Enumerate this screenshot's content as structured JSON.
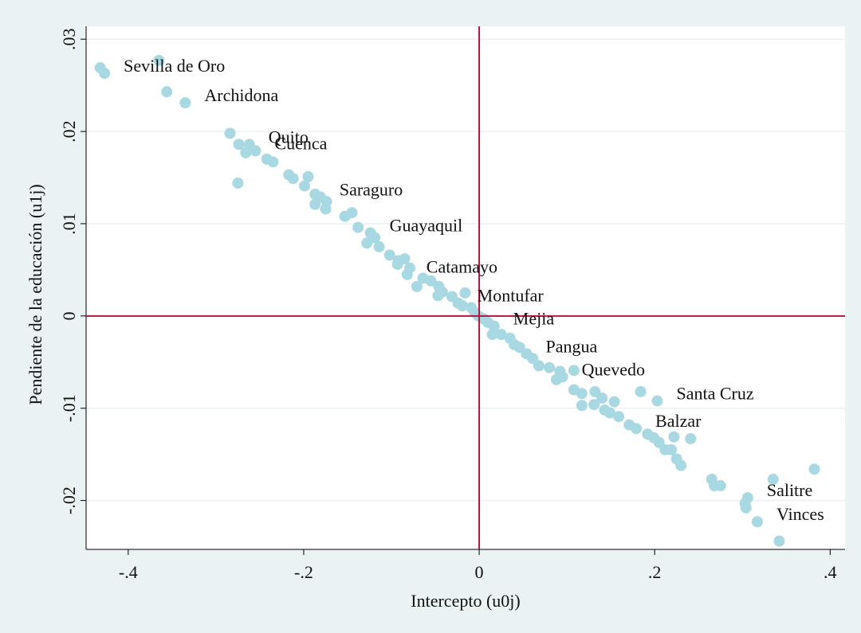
{
  "chart_data": {
    "type": "scatter",
    "x_label": "Intercepto (u0j)",
    "y_label": "Pendiente de la educación (u1j)",
    "color": "#a8d8e2",
    "ref_color": "#b0173f",
    "grid": true,
    "xline": 0,
    "yline": 0,
    "xlim": [
      -0.448,
      0.417
    ],
    "ylim": [
      -0.0253,
      0.0314
    ],
    "xticks": [
      {
        "value": -0.4,
        "label": "-.4"
      },
      {
        "value": -0.2,
        "label": "-.2"
      },
      0,
      {
        "value": 0.2,
        "label": ".2"
      },
      {
        "value": 0.4,
        "label": ".4"
      }
    ],
    "yticks": [
      {
        "value": -0.02,
        "label": "-.02"
      },
      {
        "value": -0.01,
        "label": "-.01"
      },
      0,
      {
        "value": 0.01,
        "label": ".01"
      },
      {
        "value": 0.02,
        "label": ".02"
      },
      {
        "value": 0.03,
        "label": ".03"
      }
    ],
    "x": [
      -0.432,
      -0.427,
      -0.365,
      -0.356,
      -0.335,
      -0.284,
      -0.274,
      -0.262,
      -0.266,
      -0.255,
      -0.242,
      -0.235,
      -0.275,
      -0.217,
      -0.212,
      -0.195,
      -0.199,
      -0.187,
      -0.181,
      -0.174,
      -0.187,
      -0.175,
      -0.153,
      -0.145,
      -0.138,
      -0.124,
      -0.119,
      -0.128,
      -0.114,
      -0.102,
      -0.092,
      -0.085,
      -0.093,
      -0.079,
      -0.082,
      -0.071,
      -0.064,
      -0.055,
      -0.046,
      -0.042,
      -0.047,
      -0.031,
      -0.016,
      -0.024,
      -0.019,
      -0.009,
      -0.005,
      -0.001,
      0.005,
      0.01,
      0.017,
      0.015,
      0.025,
      0.035,
      0.04,
      0.046,
      0.054,
      0.061,
      0.068,
      0.08,
      0.092,
      0.095,
      0.088,
      0.108,
      0.108,
      0.117,
      0.132,
      0.117,
      0.131,
      0.14,
      0.143,
      0.149,
      0.154,
      0.159,
      0.171,
      0.179,
      0.192,
      0.199,
      0.205,
      0.212,
      0.219,
      0.222,
      0.225,
      0.23,
      0.241,
      0.184,
      0.203,
      0.265,
      0.268,
      0.275,
      0.306,
      0.303,
      0.304,
      0.317,
      0.335,
      0.382,
      0.342
    ],
    "y": [
      0.0269,
      0.0263,
      0.0277,
      0.0243,
      0.0231,
      0.0198,
      0.0186,
      0.0186,
      0.0177,
      0.0179,
      0.017,
      0.0167,
      0.0144,
      0.0153,
      0.0149,
      0.0151,
      0.0141,
      0.0132,
      0.0129,
      0.0124,
      0.0121,
      0.0116,
      0.0108,
      0.0112,
      0.0096,
      0.009,
      0.0085,
      0.0079,
      0.0075,
      0.0066,
      0.006,
      0.0062,
      0.0056,
      0.0052,
      0.0045,
      0.0032,
      0.0041,
      0.0038,
      0.0032,
      0.0026,
      0.0022,
      0.0021,
      0.0025,
      0.0014,
      0.0011,
      0.0009,
      0.0004,
      0.0,
      -0.0003,
      -0.0007,
      -0.0011,
      -0.002,
      -0.002,
      -0.0024,
      -0.0031,
      -0.0034,
      -0.0041,
      -0.0046,
      -0.0054,
      -0.0056,
      -0.006,
      -0.0066,
      -0.0069,
      -0.0059,
      -0.008,
      -0.0084,
      -0.0082,
      -0.0097,
      -0.0096,
      -0.0089,
      -0.0102,
      -0.0105,
      -0.0093,
      -0.0109,
      -0.0118,
      -0.0122,
      -0.0128,
      -0.0132,
      -0.0137,
      -0.0145,
      -0.0145,
      -0.0131,
      -0.0155,
      -0.0162,
      -0.0133,
      -0.0082,
      -0.0092,
      -0.0177,
      -0.0184,
      -0.0184,
      -0.0197,
      -0.0203,
      -0.0208,
      -0.0223,
      -0.0177,
      -0.0166,
      -0.0244
    ],
    "labels": [
      null,
      "Sevilla de Oro",
      null,
      null,
      "Archidona",
      null,
      null,
      "Quito",
      null,
      "Cuenca",
      null,
      null,
      null,
      null,
      null,
      null,
      null,
      null,
      "Saraguro",
      null,
      null,
      null,
      null,
      null,
      null,
      "Guayaquil",
      null,
      null,
      null,
      null,
      null,
      null,
      null,
      null,
      "Catamayo",
      null,
      null,
      null,
      null,
      null,
      null,
      null,
      null,
      "Montufar",
      null,
      null,
      null,
      null,
      null,
      null,
      "Mejia",
      null,
      null,
      null,
      null,
      null,
      "Pangua",
      null,
      null,
      null,
      null,
      "Quevedo",
      null,
      null,
      null,
      null,
      null,
      null,
      null,
      null,
      null,
      null,
      null,
      null,
      null,
      "Balzar",
      null,
      null,
      null,
      null,
      null,
      null,
      null,
      null,
      null,
      null,
      "Santa Cruz",
      null,
      null,
      null,
      "Salitre",
      null,
      null,
      "Vinces",
      null,
      null,
      null
    ]
  }
}
